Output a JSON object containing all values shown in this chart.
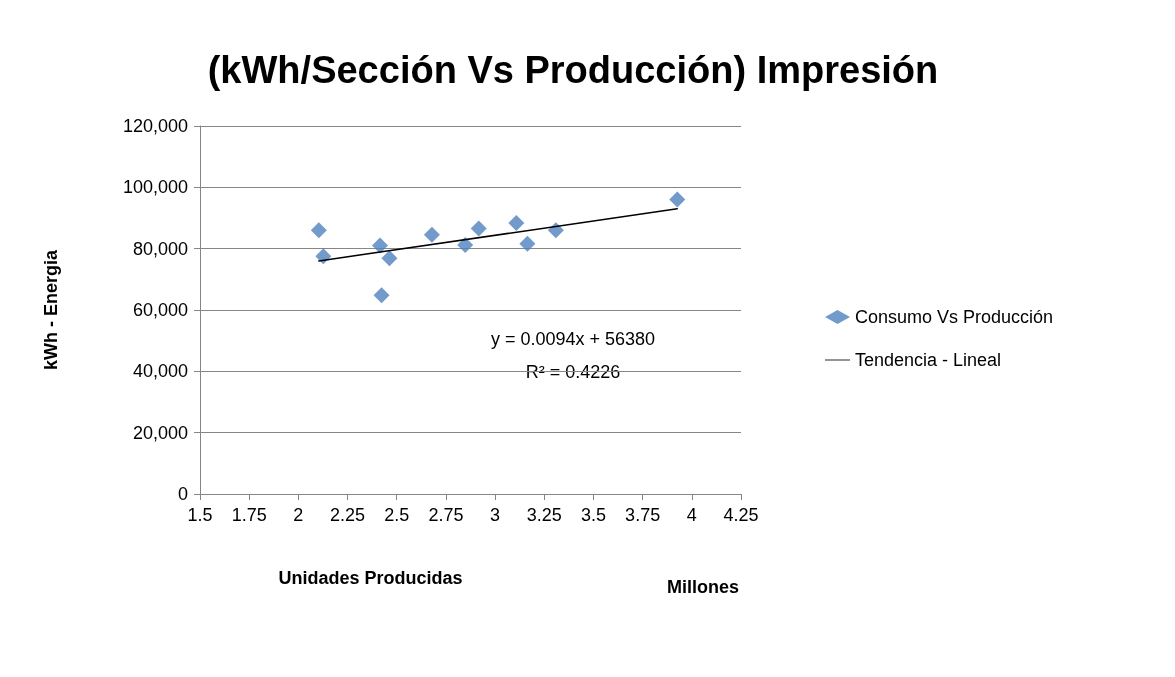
{
  "chart_data": {
    "type": "scatter",
    "title": "(kWh/Sección Vs Producción) Impresión",
    "xlabel": "Unidades Producidas",
    "ylabel": "kWh - Energia",
    "series": [
      {
        "name": "Consumo Vs Producción",
        "color": "#4f81bd",
        "marker": "diamond",
        "x": [
          2.104,
          2.127,
          2.415,
          2.463,
          2.423,
          2.679,
          2.848,
          2.917,
          3.108,
          3.164,
          3.309,
          3.926
        ],
        "values": [
          86000,
          77500,
          81000,
          76900,
          64800,
          84500,
          81200,
          86600,
          88400,
          81600,
          86000,
          96000
        ]
      },
      {
        "name": "Tendencia - Lineal",
        "type": "line",
        "color": "#000000",
        "marker": "none",
        "line_style": "solid",
        "x": [
          2.104,
          3.926
        ],
        "values": [
          76000,
          93000
        ]
      }
    ],
    "xlim": [
      1.5,
      4.25
    ],
    "xticks": [
      1.5,
      1.75,
      2,
      2.25,
      2.5,
      2.75,
      3,
      3.25,
      3.5,
      3.75,
      4,
      4.25
    ],
    "ylim": [
      0,
      120000
    ],
    "yticks": [
      0,
      {
        "value": 20000,
        "label": "20,000"
      },
      {
        "value": 40000,
        "label": "40,000"
      },
      {
        "value": 60000,
        "label": "60,000"
      },
      {
        "value": 80000,
        "label": "80,000"
      },
      {
        "value": 100000,
        "label": "100,000"
      },
      {
        "value": 120000,
        "label": "120,000"
      }
    ],
    "grid": "y",
    "legend": "right",
    "annotations": [
      "y = 0.0094x + 56380",
      "R² = 0.4226",
      "Millones"
    ]
  }
}
